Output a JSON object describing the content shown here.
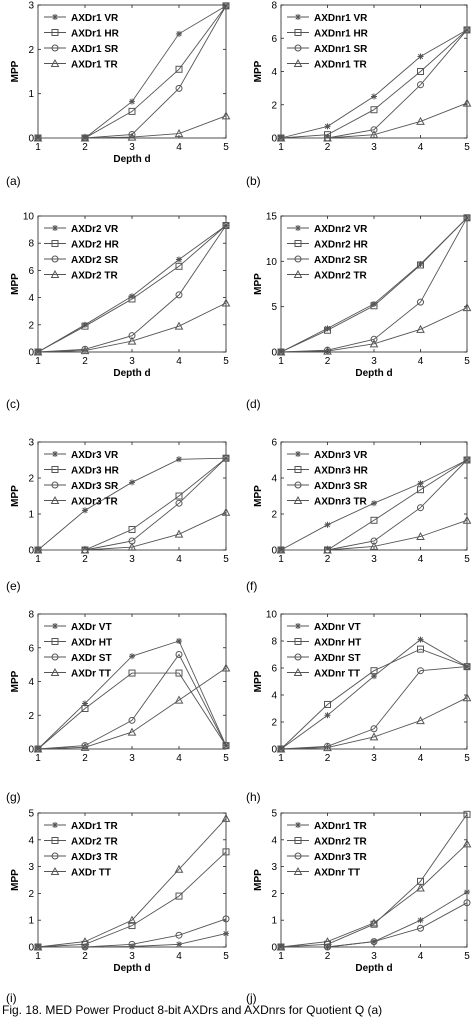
{
  "caption": "Fig. 18. MED Power Product 8-bit AXDrs and AXDnrs for Quotient Q (a)",
  "colors": {
    "line": "#555555",
    "axis": "#222222",
    "text": "#000000"
  },
  "chart_data": [
    {
      "panel_label": "(a)",
      "type": "line",
      "xlabel": "Depth d",
      "ylabel": "MPP",
      "x": [
        1,
        2,
        3,
        4,
        5
      ],
      "xlim": [
        1,
        5
      ],
      "ylim": [
        0,
        3
      ],
      "yticks": [
        0,
        1,
        2,
        3
      ],
      "legend_position": "top-left",
      "grid": false,
      "series": [
        {
          "name": "AXDr1 VR",
          "marker": "star",
          "values": [
            0,
            0,
            0.82,
            2.35,
            2.98
          ]
        },
        {
          "name": "AXDr1 HR",
          "marker": "square",
          "values": [
            0,
            0,
            0.6,
            1.55,
            2.98
          ]
        },
        {
          "name": "AXDr1 SR",
          "marker": "circle",
          "values": [
            0,
            0,
            0.08,
            1.12,
            2.98
          ]
        },
        {
          "name": "AXDr1 TR",
          "marker": "triangle",
          "values": [
            0,
            0,
            0.02,
            0.1,
            0.5
          ]
        }
      ]
    },
    {
      "panel_label": "(b)",
      "type": "line",
      "xlabel": "",
      "ylabel": "MPP",
      "x": [
        1,
        2,
        3,
        4,
        5
      ],
      "xlim": [
        1,
        5
      ],
      "ylim": [
        0,
        8
      ],
      "yticks": [
        0,
        2,
        4,
        6,
        8
      ],
      "legend_position": "top-left",
      "grid": false,
      "series": [
        {
          "name": "AXDnr1 VR",
          "marker": "star",
          "values": [
            0,
            0.7,
            2.5,
            4.9,
            6.5
          ]
        },
        {
          "name": "AXDnr1 HR",
          "marker": "square",
          "values": [
            0,
            0.2,
            1.7,
            4.0,
            6.5
          ]
        },
        {
          "name": "AXDnr1 SR",
          "marker": "circle",
          "values": [
            0,
            0,
            0.5,
            3.2,
            6.5
          ]
        },
        {
          "name": "AXDnr1 TR",
          "marker": "triangle",
          "values": [
            0,
            0,
            0.2,
            1.0,
            2.1
          ]
        }
      ]
    },
    {
      "panel_label": "(c)",
      "type": "line",
      "xlabel": "Depth d",
      "ylabel": "MPP",
      "x": [
        1,
        2,
        3,
        4,
        5
      ],
      "xlim": [
        1,
        5
      ],
      "ylim": [
        0,
        10
      ],
      "yticks": [
        0,
        2,
        4,
        6,
        8,
        10
      ],
      "legend_position": "top-left",
      "grid": false,
      "series": [
        {
          "name": "AXDr2 VR",
          "marker": "star",
          "values": [
            0,
            2.0,
            4.1,
            6.8,
            9.3
          ]
        },
        {
          "name": "AXDr2 HR",
          "marker": "square",
          "values": [
            0,
            1.9,
            3.9,
            6.3,
            9.3
          ]
        },
        {
          "name": "AXDr2 SR",
          "marker": "circle",
          "values": [
            0,
            0.2,
            1.2,
            4.2,
            9.3
          ]
        },
        {
          "name": "AXDr2 TR",
          "marker": "triangle",
          "values": [
            0,
            0.1,
            0.8,
            1.9,
            3.6
          ]
        }
      ]
    },
    {
      "panel_label": "(d)",
      "type": "line",
      "xlabel": "Depth d",
      "ylabel": "MPP",
      "x": [
        1,
        2,
        3,
        4,
        5
      ],
      "xlim": [
        1,
        5
      ],
      "ylim": [
        0,
        15
      ],
      "yticks": [
        0,
        5,
        10,
        15
      ],
      "legend_position": "top-left",
      "grid": false,
      "series": [
        {
          "name": "AXDnr2 VR",
          "marker": "star",
          "values": [
            0,
            2.6,
            5.3,
            9.7,
            14.8
          ]
        },
        {
          "name": "AXDnr2 HR",
          "marker": "square",
          "values": [
            0,
            2.4,
            5.1,
            9.6,
            14.8
          ]
        },
        {
          "name": "AXDnr2 SR",
          "marker": "circle",
          "values": [
            0,
            0.2,
            1.4,
            5.5,
            14.8
          ]
        },
        {
          "name": "AXDnr2 TR",
          "marker": "triangle",
          "values": [
            0,
            0.1,
            0.9,
            2.5,
            4.9
          ]
        }
      ]
    },
    {
      "panel_label": "(e)",
      "type": "line",
      "xlabel": "",
      "ylabel": "MPP",
      "x": [
        1,
        2,
        3,
        4,
        5
      ],
      "xlim": [
        1,
        5
      ],
      "ylim": [
        0,
        3
      ],
      "yticks": [
        0,
        1,
        2,
        3
      ],
      "legend_position": "top-left",
      "grid": false,
      "series": [
        {
          "name": "AXDr3 VR",
          "marker": "star",
          "values": [
            0,
            1.1,
            1.88,
            2.52,
            2.55
          ]
        },
        {
          "name": "AXDr3 HR",
          "marker": "square",
          "values": [
            0,
            0,
            0.57,
            1.5,
            2.55
          ]
        },
        {
          "name": "AXDr3 SR",
          "marker": "circle",
          "values": [
            0,
            0,
            0.25,
            1.3,
            2.55
          ]
        },
        {
          "name": "AXDr3 TR",
          "marker": "triangle",
          "values": [
            0,
            0,
            0.08,
            0.44,
            1.05
          ]
        }
      ]
    },
    {
      "panel_label": "(f)",
      "type": "line",
      "xlabel": "",
      "ylabel": "MPP",
      "x": [
        1,
        2,
        3,
        4,
        5
      ],
      "xlim": [
        1,
        5
      ],
      "ylim": [
        0,
        6
      ],
      "yticks": [
        0,
        2,
        4,
        6
      ],
      "legend_position": "top-left",
      "grid": false,
      "series": [
        {
          "name": "AXDnr3 VR",
          "marker": "star",
          "values": [
            0,
            1.4,
            2.6,
            3.7,
            5.0
          ]
        },
        {
          "name": "AXDnr3 HR",
          "marker": "square",
          "values": [
            0,
            0,
            1.65,
            3.35,
            5.0
          ]
        },
        {
          "name": "AXDnr3 SR",
          "marker": "circle",
          "values": [
            0,
            0,
            0.5,
            2.35,
            5.0
          ]
        },
        {
          "name": "AXDnr3 TR",
          "marker": "triangle",
          "values": [
            0,
            0,
            0.2,
            0.75,
            1.65
          ]
        }
      ]
    },
    {
      "panel_label": "(g)",
      "type": "line",
      "xlabel": "",
      "ylabel": "MPP",
      "x": [
        1,
        2,
        3,
        4,
        5
      ],
      "xlim": [
        1,
        5
      ],
      "ylim": [
        0,
        8
      ],
      "yticks": [
        0,
        2,
        4,
        6,
        8
      ],
      "legend_position": "top-left",
      "grid": false,
      "series": [
        {
          "name": "AXDr VT",
          "marker": "star",
          "values": [
            0,
            2.7,
            5.5,
            6.4,
            0.2
          ]
        },
        {
          "name": "AXDr HT",
          "marker": "square",
          "values": [
            0,
            2.4,
            4.5,
            4.5,
            0.2
          ]
        },
        {
          "name": "AXDr ST",
          "marker": "circle",
          "values": [
            0,
            0.2,
            1.7,
            5.6,
            0.2
          ]
        },
        {
          "name": "AXDr TT",
          "marker": "triangle",
          "values": [
            0,
            0.1,
            1.0,
            2.9,
            4.8
          ]
        }
      ]
    },
    {
      "panel_label": "(h)",
      "type": "line",
      "xlabel": "",
      "ylabel": "MPP",
      "x": [
        1,
        2,
        3,
        4,
        5
      ],
      "xlim": [
        1,
        5
      ],
      "ylim": [
        0,
        10
      ],
      "yticks": [
        0,
        2,
        4,
        6,
        8,
        10
      ],
      "legend_position": "top-left",
      "grid": false,
      "series": [
        {
          "name": "AXDnr VT",
          "marker": "star",
          "values": [
            0,
            2.5,
            5.4,
            8.1,
            6.1
          ]
        },
        {
          "name": "AXDnr HT",
          "marker": "square",
          "values": [
            0,
            3.3,
            5.8,
            7.4,
            6.1
          ]
        },
        {
          "name": "AXDnr ST",
          "marker": "circle",
          "values": [
            0,
            0.2,
            1.5,
            5.8,
            6.1
          ]
        },
        {
          "name": "AXDnr TT",
          "marker": "triangle",
          "values": [
            0,
            0.1,
            0.9,
            2.1,
            3.8
          ]
        }
      ]
    },
    {
      "panel_label": "(i)",
      "type": "line",
      "xlabel": "Depth d",
      "ylabel": "MPP",
      "x": [
        1,
        2,
        3,
        4,
        5
      ],
      "xlim": [
        1,
        5
      ],
      "ylim": [
        0,
        5
      ],
      "yticks": [
        0,
        1,
        2,
        3,
        4,
        5
      ],
      "legend_position": "top-left",
      "grid": false,
      "series": [
        {
          "name": "AXDr1 TR",
          "marker": "star",
          "values": [
            0,
            0,
            0.02,
            0.1,
            0.5
          ]
        },
        {
          "name": "AXDr2 TR",
          "marker": "square",
          "values": [
            0,
            0.1,
            0.8,
            1.9,
            3.55
          ]
        },
        {
          "name": "AXDr3 TR",
          "marker": "circle",
          "values": [
            0,
            0,
            0.1,
            0.44,
            1.05
          ]
        },
        {
          "name": "AXDr TT",
          "marker": "triangle",
          "values": [
            0,
            0.2,
            1.0,
            2.9,
            4.8
          ]
        }
      ]
    },
    {
      "panel_label": "(j)",
      "type": "line",
      "xlabel": "Depth d",
      "ylabel": "MPP",
      "x": [
        1,
        2,
        3,
        4,
        5
      ],
      "xlim": [
        1,
        5
      ],
      "ylim": [
        0,
        5
      ],
      "yticks": [
        0,
        1,
        2,
        3,
        4,
        5
      ],
      "legend_position": "top-left",
      "grid": false,
      "series": [
        {
          "name": "AXDnr1 TR",
          "marker": "star",
          "values": [
            0,
            0,
            0.2,
            1.0,
            2.05
          ]
        },
        {
          "name": "AXDnr2 TR",
          "marker": "square",
          "values": [
            0,
            0.1,
            0.85,
            2.45,
            4.95
          ]
        },
        {
          "name": "AXDnr3 TR",
          "marker": "circle",
          "values": [
            0,
            0,
            0.2,
            0.7,
            1.65
          ]
        },
        {
          "name": "AXDnr TT",
          "marker": "triangle",
          "values": [
            0,
            0.2,
            0.9,
            2.2,
            3.85
          ]
        }
      ]
    }
  ]
}
